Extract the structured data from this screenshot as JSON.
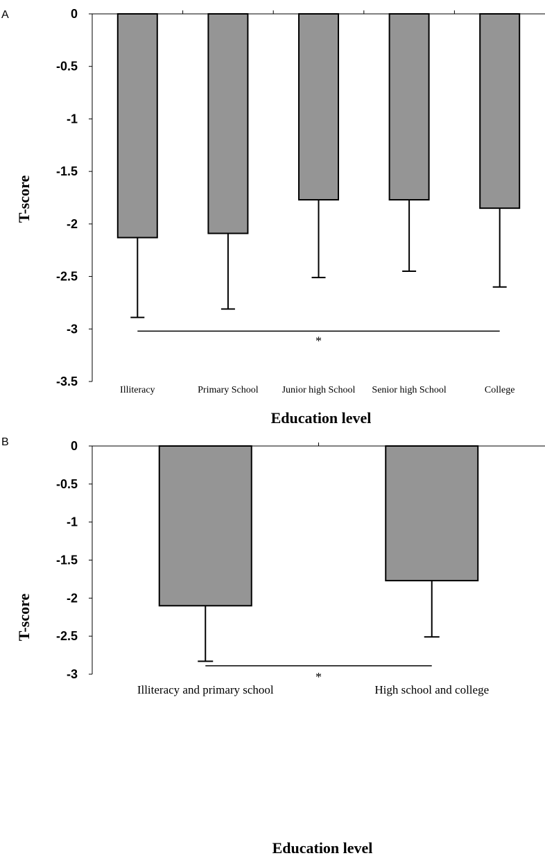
{
  "chart_data": [
    {
      "panel": "A",
      "type": "bar",
      "categories": [
        "Illiteracy",
        "Primary School",
        "Junior high School",
        "Senior high School",
        "College"
      ],
      "values": [
        -2.13,
        -2.09,
        -1.77,
        -1.77,
        -1.85
      ],
      "error_lower": [
        -2.89,
        -2.81,
        -2.51,
        -2.45,
        -2.6
      ],
      "ylim": [
        -3.5,
        0
      ],
      "yticks": [
        "0",
        "-0.5",
        "-1",
        "-1.5",
        "-2",
        "-2.5",
        "-3",
        "-3.5"
      ],
      "xlabel": "Education level",
      "ylabel": "T-score",
      "bar_color": "#959595",
      "significance": {
        "level": -3.02,
        "mark": "*",
        "from_category": 0,
        "to_category": 4
      },
      "grid": false
    },
    {
      "panel": "B",
      "type": "bar",
      "categories": [
        "Illiteracy and primary school",
        "High school and college"
      ],
      "values": [
        -2.1,
        -1.77
      ],
      "error_lower": [
        -2.83,
        -2.51
      ],
      "ylim": [
        -3,
        0
      ],
      "yticks": [
        "0",
        "-0.5",
        "-1",
        "-1.5",
        "-2",
        "-2.5",
        "-3"
      ],
      "xlabel": "Education level",
      "ylabel": "T-score",
      "bar_color": "#959595",
      "significance": {
        "level": -2.89,
        "mark": "*",
        "from_category": 0,
        "to_category": 1
      },
      "grid": false
    }
  ]
}
